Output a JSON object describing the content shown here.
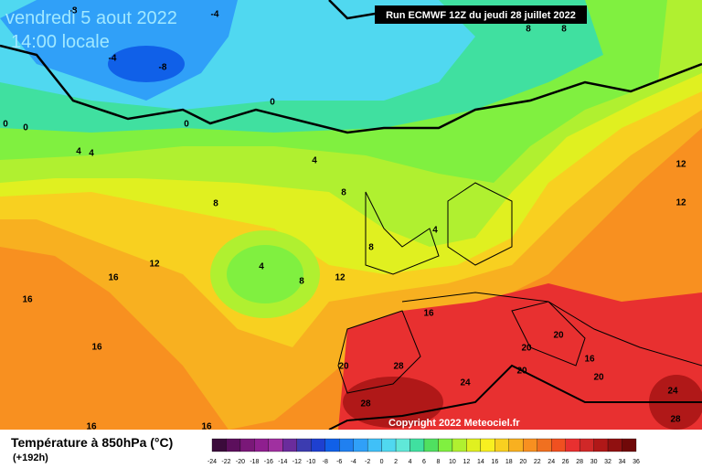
{
  "header": {
    "date": "vendredi 5 aout 2022",
    "time": "14:00 locale",
    "run": "Run ECMWF 12Z du jeudi 28 juillet 2022"
  },
  "copyright": "Copyright 2022 Meteociel.fr",
  "legend": {
    "title": "Température à 850hPa (°C)",
    "lead": "(+192h)",
    "scale": [
      -24,
      -22,
      -20,
      -18,
      -16,
      -14,
      -12,
      -10,
      -8,
      -6,
      -4,
      -2,
      0,
      2,
      4,
      6,
      8,
      10,
      12,
      14,
      16,
      18,
      20,
      22,
      24,
      26,
      28,
      30,
      32,
      34,
      36
    ]
  },
  "contour_labels": [
    -8,
    -4,
    -4,
    -8,
    0,
    0,
    0,
    0,
    4,
    4,
    4,
    8,
    8,
    8,
    8,
    4,
    8,
    12,
    12,
    12,
    16,
    16,
    4,
    8,
    12,
    16,
    16,
    20,
    28,
    24,
    20,
    20,
    20,
    16,
    20,
    24,
    28,
    28,
    16,
    16
  ]
}
